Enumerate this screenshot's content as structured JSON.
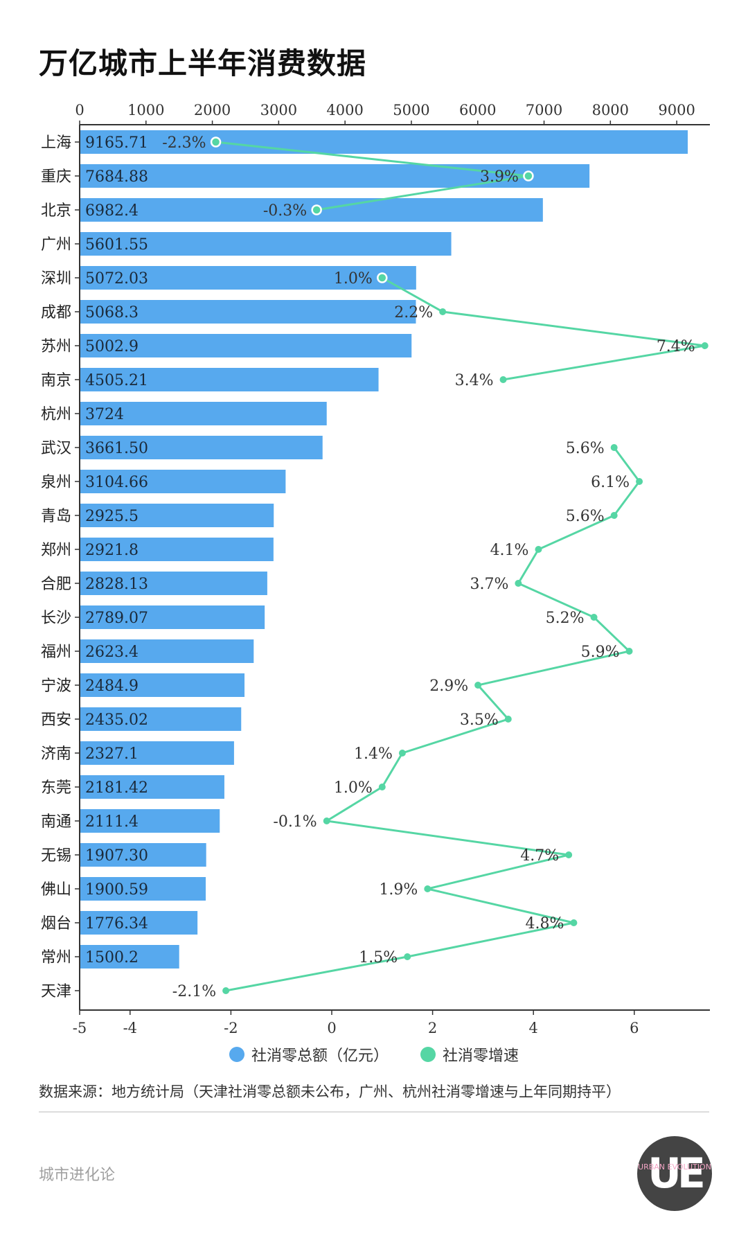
{
  "header": {
    "title": "万亿城市上半年消费数据"
  },
  "chart_data": {
    "type": "bar",
    "orientation": "horizontal",
    "categories": [
      "上海",
      "重庆",
      "北京",
      "广州",
      "深圳",
      "成都",
      "苏州",
      "南京",
      "杭州",
      "武汉",
      "泉州",
      "青岛",
      "郑州",
      "合肥",
      "长沙",
      "福州",
      "宁波",
      "西安",
      "济南",
      "东莞",
      "南通",
      "无锡",
      "佛山",
      "烟台",
      "常州",
      "天津"
    ],
    "series": [
      {
        "name": "社消零总额（亿元）",
        "type": "bar",
        "axis": "top",
        "color": "#57a9ee",
        "values": [
          9165.71,
          7684.88,
          6982.4,
          5601.55,
          5072.03,
          5068.3,
          5002.9,
          4505.21,
          3724,
          3661.5,
          3104.66,
          2925.5,
          2921.8,
          2828.13,
          2789.07,
          2623.4,
          2484.9,
          2435.02,
          2327.1,
          2181.42,
          2111.4,
          1907.3,
          1900.59,
          1776.34,
          1500.2,
          null
        ],
        "labels": [
          "9165.71",
          "7684.88",
          "6982.4",
          "5601.55",
          "5072.03",
          "5068.3",
          "5002.9",
          "4505.21",
          "3724",
          "3661.50",
          "3104.66",
          "2925.5",
          "2921.8",
          "2828.13",
          "2789.07",
          "2623.4",
          "2484.9",
          "2435.02",
          "2327.1",
          "2181.42",
          "2111.4",
          "1907.30",
          "1900.59",
          "1776.34",
          "1500.2",
          ""
        ]
      },
      {
        "name": "社消零增速",
        "type": "line",
        "axis": "bottom",
        "color": "#55d6a4",
        "values": [
          -2.3,
          3.9,
          -0.3,
          null,
          1.0,
          2.2,
          7.4,
          3.4,
          null,
          5.6,
          6.1,
          5.6,
          4.1,
          3.7,
          5.2,
          5.9,
          2.9,
          3.5,
          1.4,
          1.0,
          -0.1,
          4.7,
          1.9,
          4.8,
          1.5,
          -2.1
        ],
        "labels": [
          "-2.3%",
          "3.9%",
          "-0.3%",
          "",
          "1.0%",
          "2.2%",
          "7.4%",
          "3.4%",
          "",
          "5.6%",
          "6.1%",
          "5.6%",
          "4.1%",
          "3.7%",
          "5.2%",
          "5.9%",
          "2.9%",
          "3.5%",
          "1.4%",
          "1.0%",
          "-0.1%",
          "4.7%",
          "1.9%",
          "4.8%",
          "1.5%",
          "-2.1%"
        ]
      }
    ],
    "x_top": {
      "range": [
        0,
        9500
      ],
      "ticks": [
        0,
        1000,
        2000,
        3000,
        4000,
        5000,
        6000,
        7000,
        8000,
        9000
      ]
    },
    "x_bottom": {
      "range": [
        -5,
        7.5
      ],
      "ticks": [
        -5,
        -4,
        -2,
        0,
        2,
        4,
        6
      ]
    },
    "legend": "bottom"
  },
  "legend": [
    {
      "label": "社消零总额（亿元）",
      "color": "#57a9ee"
    },
    {
      "label": "社消零增速",
      "color": "#55d6a4"
    }
  ],
  "footer": {
    "source": "数据来源：地方统计局（天津社消零总额未公布，广州、杭州社消零增速与上年同期持平）",
    "brand": "城市进化论",
    "logo_mark": "UE",
    "logo_text": "URBAN EVOLUTION"
  }
}
